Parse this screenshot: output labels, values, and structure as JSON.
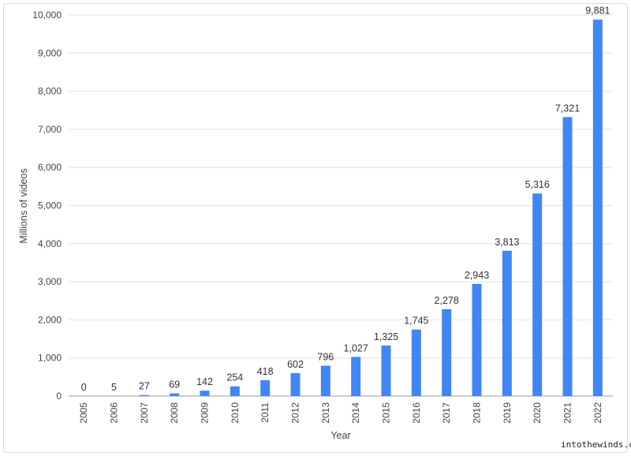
{
  "chart_data": {
    "type": "bar",
    "categories": [
      "2005",
      "2006",
      "2007",
      "2008",
      "2009",
      "2010",
      "2011",
      "2012",
      "2013",
      "2014",
      "2015",
      "2016",
      "2017",
      "2018",
      "2019",
      "2020",
      "2021",
      "2022"
    ],
    "values": [
      0,
      5,
      27,
      69,
      142,
      254,
      418,
      602,
      796,
      1027,
      1325,
      1745,
      2278,
      2943,
      3813,
      5316,
      7321,
      9881
    ],
    "data_labels": [
      "0",
      "5",
      "27",
      "69",
      "142",
      "254",
      "418",
      "602",
      "796",
      "1,027",
      "1,325",
      "1,745",
      "2,278",
      "2,943",
      "3,813",
      "5,316",
      "7,321",
      "9,881"
    ],
    "xlabel": "Year",
    "ylabel": "Millions of videos",
    "ylim": [
      0,
      10000
    ],
    "yticks": [
      0,
      1000,
      2000,
      3000,
      4000,
      5000,
      6000,
      7000,
      8000,
      9000,
      10000
    ],
    "ytick_labels": [
      "0",
      "1,000",
      "2,000",
      "3,000",
      "4,000",
      "5,000",
      "6,000",
      "7,000",
      "8,000",
      "9,000",
      "10,000"
    ],
    "grid": true,
    "bar_color": "#4285f4"
  },
  "watermark": "intothewinds.com"
}
